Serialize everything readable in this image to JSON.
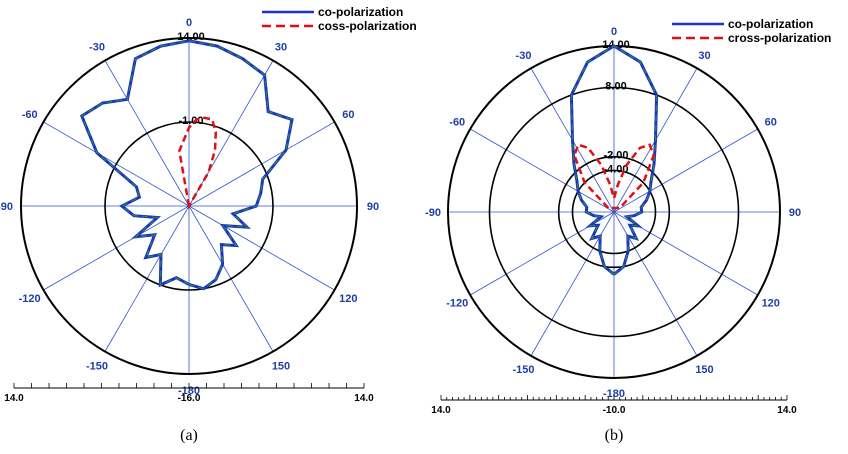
{
  "chart_data": [
    {
      "type": "polar-line",
      "caption": "(a)",
      "angle_labels": [
        "0",
        "30",
        "60",
        "90",
        "120",
        "150",
        "-180",
        "-150",
        "-120",
        "-90",
        "-60",
        "-30"
      ],
      "ring_labels": [
        "14.00",
        "-1.00"
      ],
      "r_axis": {
        "min_label": "14.0",
        "center_label": "-16.0",
        "max_label": "14.0"
      },
      "colors": {
        "co": "#1a33cc",
        "cross": "#dd1111",
        "co_inner": "#2e8b2e"
      },
      "series": [
        {
          "name": "co-polarization",
          "theta_deg": [
            -180,
            -170,
            -160,
            -150,
            -140,
            -130,
            -120,
            -110,
            -100,
            -90,
            -80,
            -70,
            -60,
            -50,
            -40,
            -30,
            -20,
            -10,
            0,
            10,
            20,
            30,
            40,
            50,
            60,
            70,
            80,
            90,
            100,
            110,
            120,
            130,
            140,
            150,
            160,
            170,
            180
          ],
          "r": [
            -2,
            -3,
            -1,
            -6,
            -4,
            -8,
            -5,
            -10,
            -6,
            -4,
            -7,
            -6,
            3,
            9,
            8,
            6,
            12,
            13,
            13.5,
            13,
            12,
            11,
            6,
            8,
            4,
            -2,
            -3,
            -4,
            -8,
            -5,
            -9,
            -5,
            -7,
            -4,
            -2,
            -1,
            -2
          ]
        },
        {
          "name": "coss-polarization",
          "theta_deg": [
            -20,
            -10,
            0,
            5,
            10,
            15,
            20,
            25,
            30,
            40
          ],
          "r": [
            -16,
            -6,
            -2,
            -0.5,
            0,
            0,
            -2,
            -5,
            -9,
            -16
          ]
        }
      ]
    },
    {
      "type": "polar-line",
      "caption": "(b)",
      "angle_labels": [
        "0",
        "30",
        "60",
        "90",
        "120",
        "150",
        "-180",
        "-150",
        "-120",
        "-90",
        "-60",
        "-30"
      ],
      "ring_labels": [
        "14.00",
        "8.00",
        "-2.00",
        "-4.00"
      ],
      "r_axis": {
        "min_label": "14.0",
        "center_label": "-10.0",
        "max_label": "14.0"
      },
      "colors": {
        "co": "#1a33cc",
        "cross": "#dd1111",
        "co_inner": "#2e8b2e"
      },
      "series": [
        {
          "name": "co-polarization",
          "theta_deg": [
            -180,
            -170,
            -160,
            -150,
            -140,
            -130,
            -120,
            -110,
            -100,
            -90,
            -80,
            -70,
            -60,
            -50,
            -40,
            -30,
            -20,
            -10,
            0,
            10,
            20,
            30,
            40,
            50,
            60,
            70,
            80,
            90,
            100,
            110,
            120,
            130,
            140,
            150,
            160,
            170,
            180
          ],
          "r": [
            -1,
            -2,
            -4,
            -6,
            -5,
            -7,
            -6,
            -8,
            -7,
            -6,
            -6,
            -5,
            -4,
            -3,
            -1,
            2,
            8,
            12,
            14,
            12,
            8,
            2,
            -1,
            -3,
            -4,
            -5,
            -6,
            -6,
            -7,
            -8,
            -6,
            -7,
            -5,
            -6,
            -4,
            -2,
            -1
          ]
        },
        {
          "name": "cross-polarization",
          "theta_deg": [
            -55,
            -45,
            -35,
            -28,
            -22,
            -15,
            -8,
            0,
            8,
            15,
            22,
            28,
            35,
            45,
            55
          ],
          "r": [
            -9,
            -4,
            0,
            1,
            0,
            -3,
            -6,
            -8,
            -6,
            -3,
            0,
            1,
            0,
            -4,
            -9
          ]
        }
      ]
    }
  ]
}
